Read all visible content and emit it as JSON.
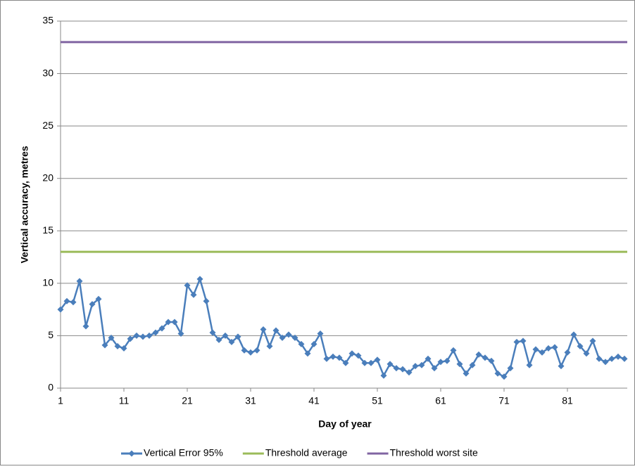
{
  "chart_data": {
    "type": "line",
    "x_label": "Day of year",
    "y_label": "Vertical accuracy, metres",
    "x": [
      1,
      2,
      3,
      4,
      5,
      6,
      7,
      8,
      9,
      10,
      11,
      12,
      13,
      14,
      15,
      16,
      17,
      18,
      19,
      20,
      21,
      22,
      23,
      24,
      25,
      26,
      27,
      28,
      29,
      30,
      31,
      32,
      33,
      34,
      35,
      36,
      37,
      38,
      39,
      40,
      41,
      42,
      43,
      44,
      45,
      46,
      47,
      48,
      49,
      50,
      51,
      52,
      53,
      54,
      55,
      56,
      57,
      58,
      59,
      60,
      61,
      62,
      63,
      64,
      65,
      66,
      67,
      68,
      69,
      70,
      71,
      72,
      73,
      74,
      75,
      76,
      77,
      78,
      79,
      80,
      81,
      82,
      83,
      84,
      85,
      86,
      87,
      88,
      89,
      90
    ],
    "series": [
      {
        "name": "Vertical Error 95%",
        "color": "#4a7ebb",
        "values": [
          7.5,
          8.3,
          8.2,
          10.2,
          5.9,
          8.0,
          8.5,
          4.1,
          4.8,
          4.0,
          3.8,
          4.7,
          5.0,
          4.9,
          5.0,
          5.3,
          5.7,
          6.3,
          6.3,
          5.2,
          9.8,
          8.9,
          10.4,
          8.3,
          5.3,
          4.6,
          5.0,
          4.4,
          4.9,
          3.6,
          3.4,
          3.6,
          5.6,
          4.0,
          5.5,
          4.8,
          5.1,
          4.8,
          4.2,
          3.3,
          4.2,
          5.2,
          2.8,
          3.0,
          2.9,
          2.4,
          3.3,
          3.1,
          2.4,
          2.4,
          2.7,
          1.2,
          2.3,
          1.9,
          1.8,
          1.5,
          2.1,
          2.2,
          2.8,
          1.9,
          2.5,
          2.6,
          3.6,
          2.3,
          1.4,
          2.2,
          3.2,
          2.9,
          2.6,
          1.4,
          1.1,
          1.9,
          4.4,
          4.5,
          2.2,
          3.7,
          3.4,
          3.8,
          3.9,
          2.1,
          3.4,
          5.1,
          4.0,
          3.3,
          4.5,
          2.8,
          2.5,
          2.8,
          3.0,
          2.8
        ]
      }
    ],
    "reference_lines": [
      {
        "name": "Threshold average",
        "color": "#9bbb59",
        "value": 13
      },
      {
        "name": "Threshold worst site",
        "color": "#8064a2",
        "value": 33
      }
    ],
    "xlim": [
      1,
      90
    ],
    "xticks": [
      1,
      11,
      21,
      31,
      41,
      51,
      61,
      71,
      81
    ],
    "ylim": [
      0,
      35
    ],
    "yticks": [
      0,
      5,
      10,
      15,
      20,
      25,
      30,
      35
    ],
    "grid": true,
    "legend": "bottom"
  }
}
